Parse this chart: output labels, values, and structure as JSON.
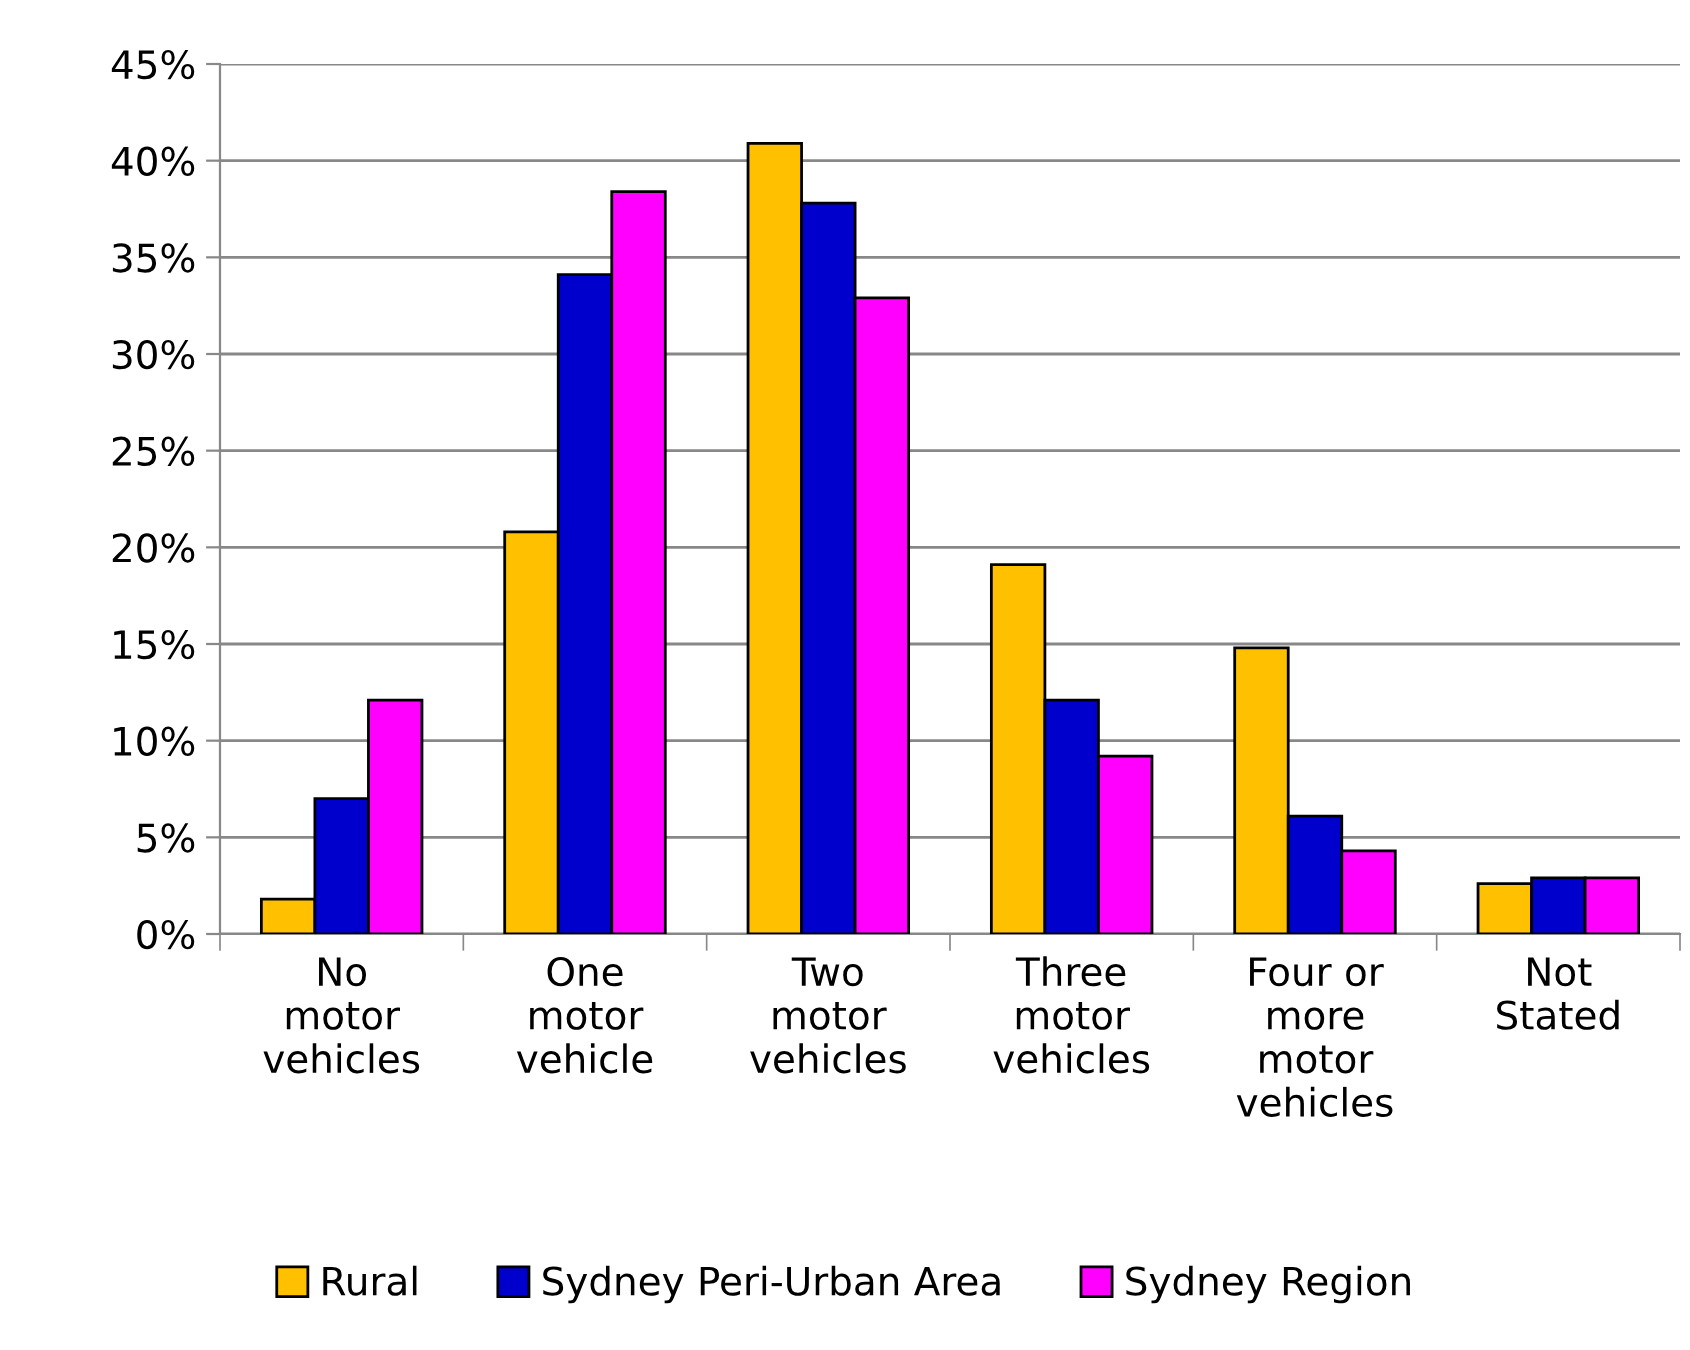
{
  "chart_data": {
    "type": "bar",
    "categories": [
      "No\nmotor\nvehicles",
      "One\nmotor\nvehicle",
      "Two\nmotor\nvehicles",
      "Three\nmotor\nvehicles",
      "Four or\nmore\nmotor\nvehicles",
      "Not\nStated"
    ],
    "series": [
      {
        "name": "Rural",
        "color": "#ffc000",
        "values": [
          1.8,
          20.8,
          40.9,
          19.1,
          14.8,
          2.6
        ]
      },
      {
        "name": "Sydney Peri-Urban Area",
        "color": "#0000cc",
        "values": [
          7.0,
          34.1,
          37.8,
          12.1,
          6.1,
          2.9
        ]
      },
      {
        "name": "Sydney Region",
        "color": "#ff00ff",
        "values": [
          12.1,
          38.4,
          32.9,
          9.2,
          4.3,
          2.9
        ]
      }
    ],
    "ylim": [
      0,
      45
    ],
    "yticks": [
      {
        "value": 0,
        "label": "0%"
      },
      {
        "value": 5,
        "label": "5%"
      },
      {
        "value": 10,
        "label": "10%"
      },
      {
        "value": 15,
        "label": "15%"
      },
      {
        "value": 20,
        "label": "20%"
      },
      {
        "value": 25,
        "label": "25%"
      },
      {
        "value": 30,
        "label": "30%"
      },
      {
        "value": 35,
        "label": "35%"
      },
      {
        "value": 40,
        "label": "40%"
      },
      {
        "value": 45,
        "label": "45%"
      }
    ],
    "grid": "y",
    "legend": "bottom"
  }
}
